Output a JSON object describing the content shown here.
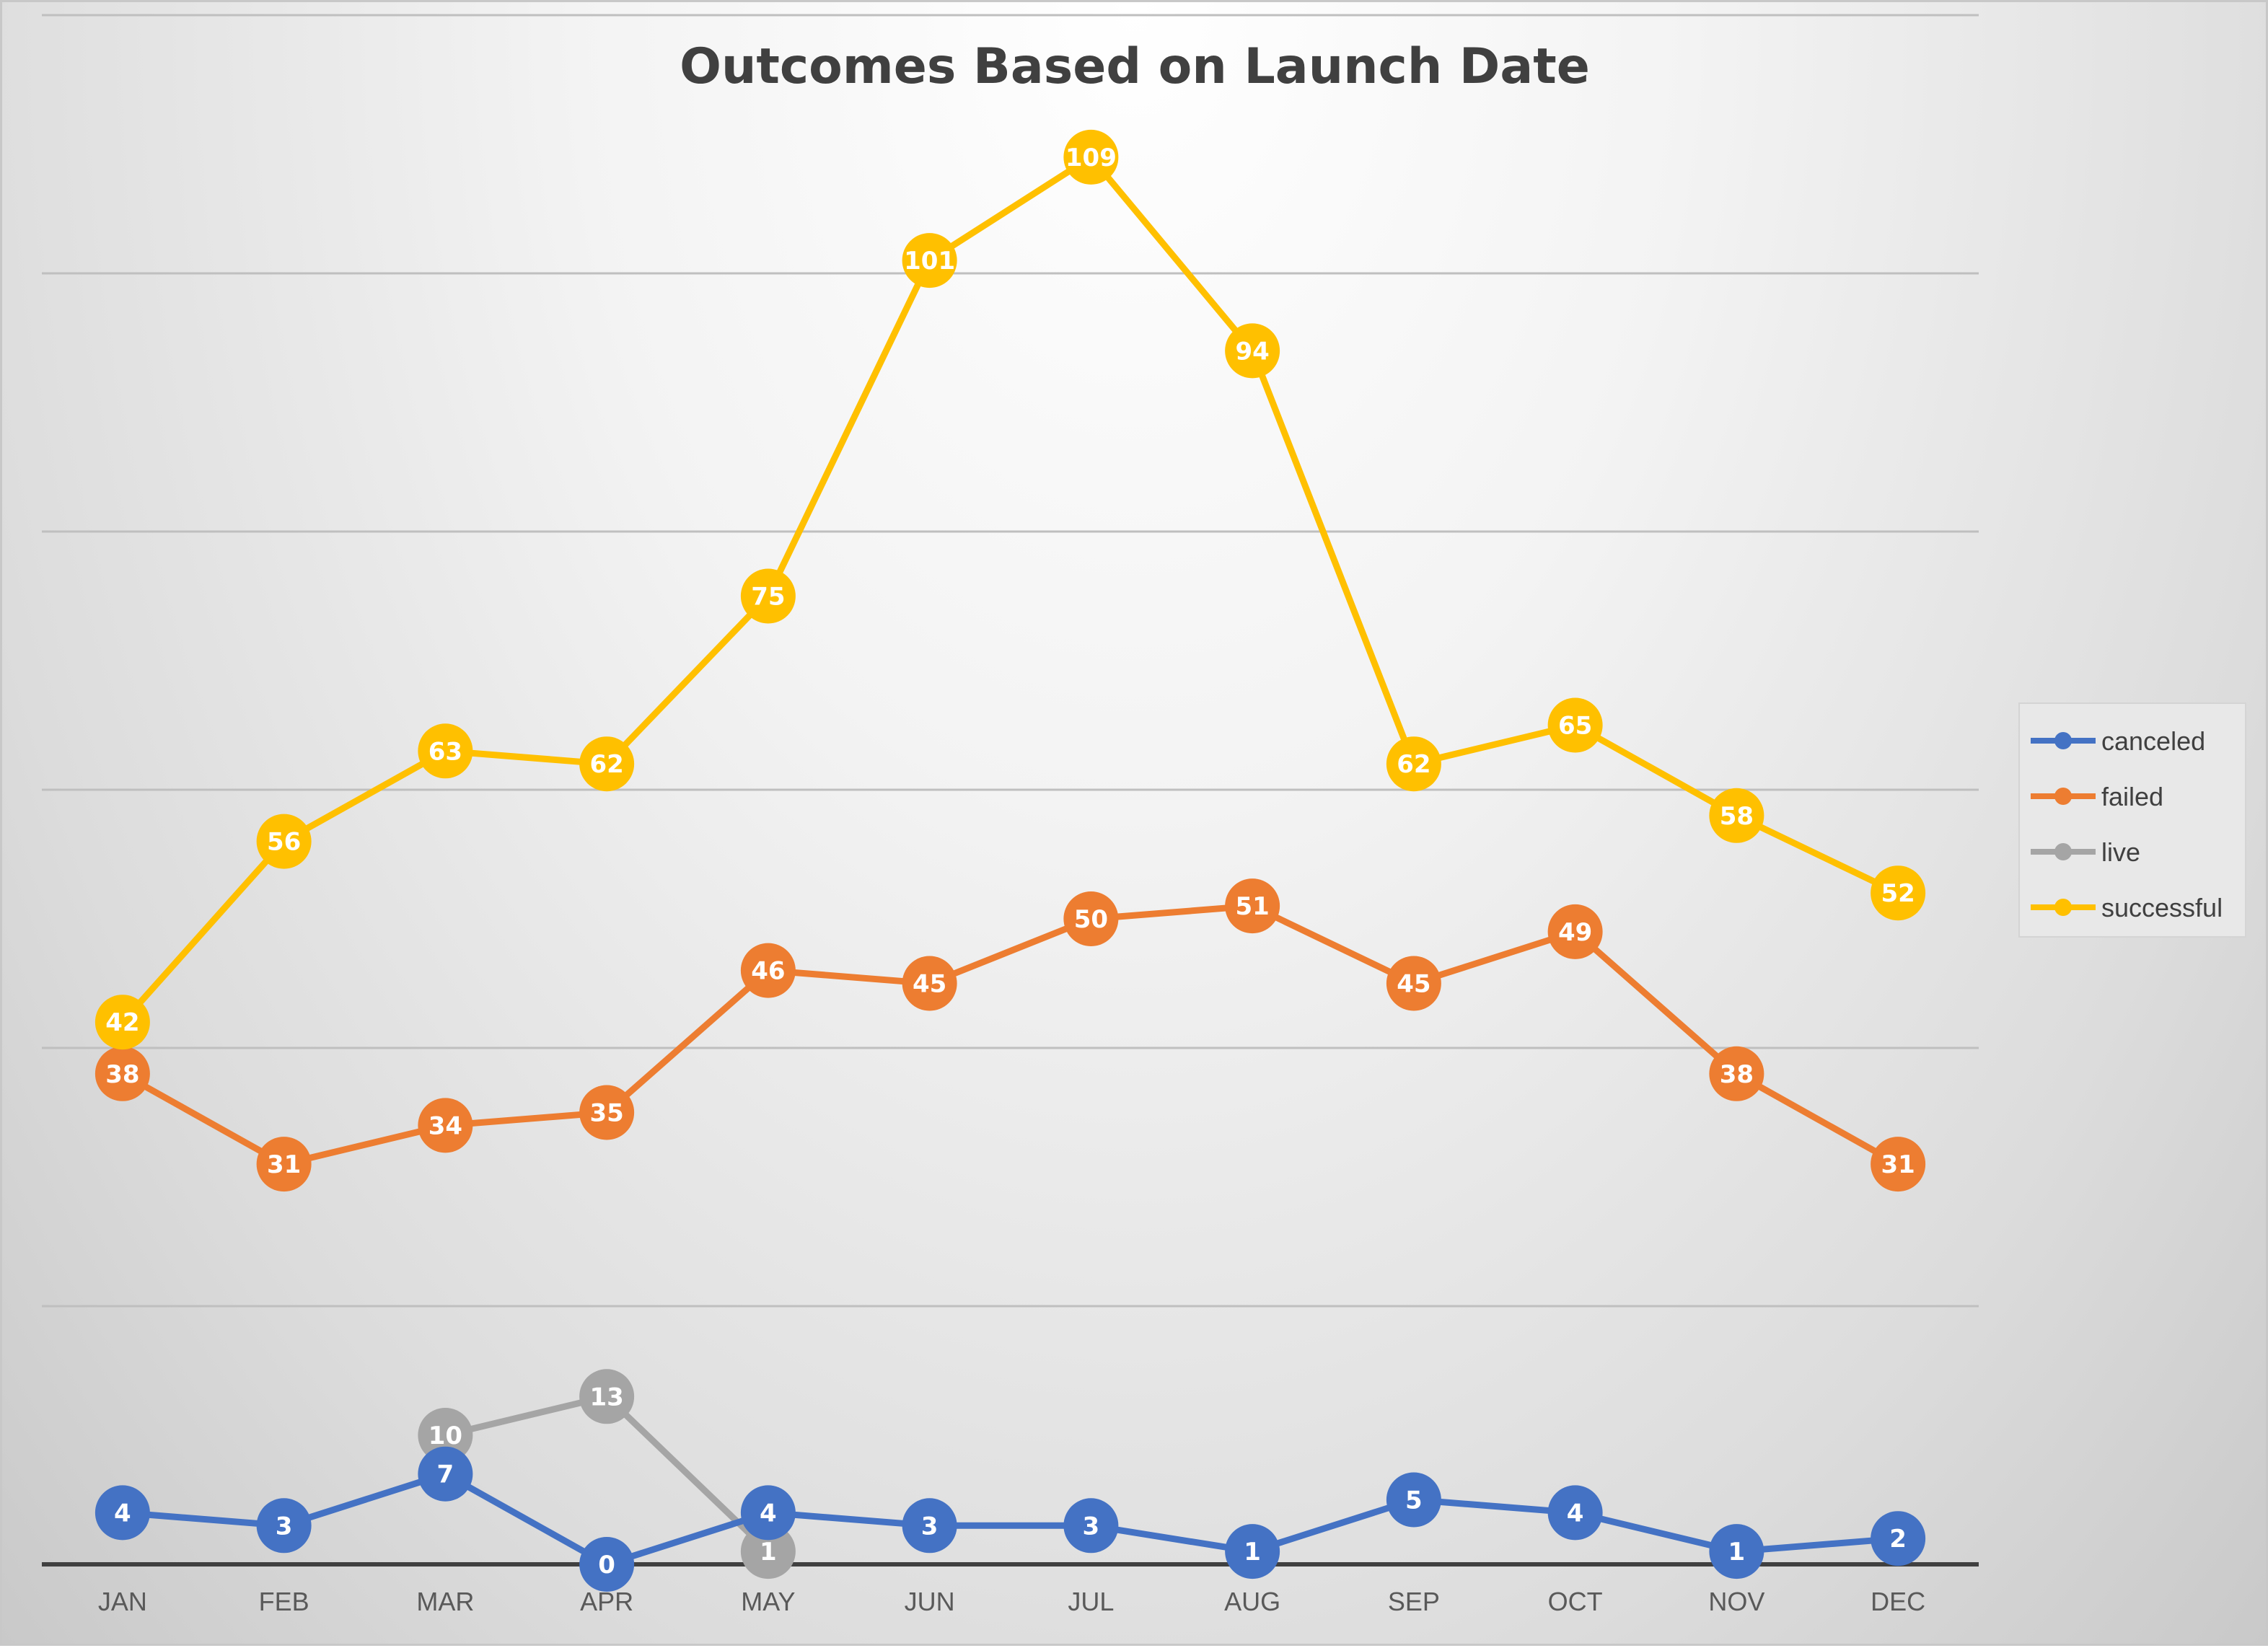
{
  "chart_data": {
    "type": "line",
    "title": "Outcomes Based on Launch Date",
    "xlabel": "",
    "ylabel": "",
    "categories": [
      "JAN",
      "FEB",
      "MAR",
      "APR",
      "MAY",
      "JUN",
      "JUL",
      "AUG",
      "SEP",
      "OCT",
      "NOV",
      "DEC"
    ],
    "ylim": [
      0,
      120
    ],
    "gridlines": [
      20,
      40,
      60,
      80,
      100,
      120
    ],
    "grid": true,
    "legend_position": "right",
    "series": [
      {
        "name": "canceled",
        "color": "#4472c4",
        "values": [
          4,
          3,
          7,
          0,
          4,
          3,
          3,
          1,
          5,
          4,
          1,
          2
        ]
      },
      {
        "name": "failed",
        "color": "#ed7d31",
        "values": [
          38,
          31,
          34,
          35,
          46,
          45,
          50,
          51,
          45,
          49,
          38,
          31
        ]
      },
      {
        "name": "live",
        "color": "#a5a5a5",
        "values": [
          null,
          null,
          10,
          13,
          1,
          null,
          null,
          null,
          null,
          null,
          null,
          null
        ]
      },
      {
        "name": "successful",
        "color": "#ffc000",
        "values": [
          42,
          56,
          63,
          62,
          75,
          101,
          109,
          94,
          62,
          65,
          58,
          52
        ]
      }
    ]
  }
}
